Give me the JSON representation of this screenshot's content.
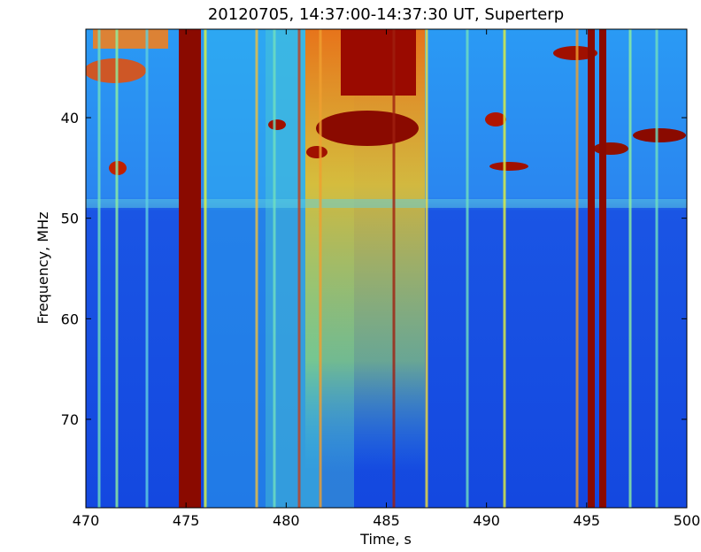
{
  "chart_data": {
    "type": "spectrogram",
    "title": "20120705, 14:37:00-14:37:30 UT, Superterp",
    "x_label": "Time, s",
    "y_label": "Frequency, MHz",
    "xlim": [
      470,
      500
    ],
    "xticks": [
      470,
      475,
      480,
      485,
      490,
      495,
      500
    ],
    "ylim": [
      78.8,
      31.2
    ],
    "yticks": [
      40,
      50,
      60,
      70
    ]
  }
}
